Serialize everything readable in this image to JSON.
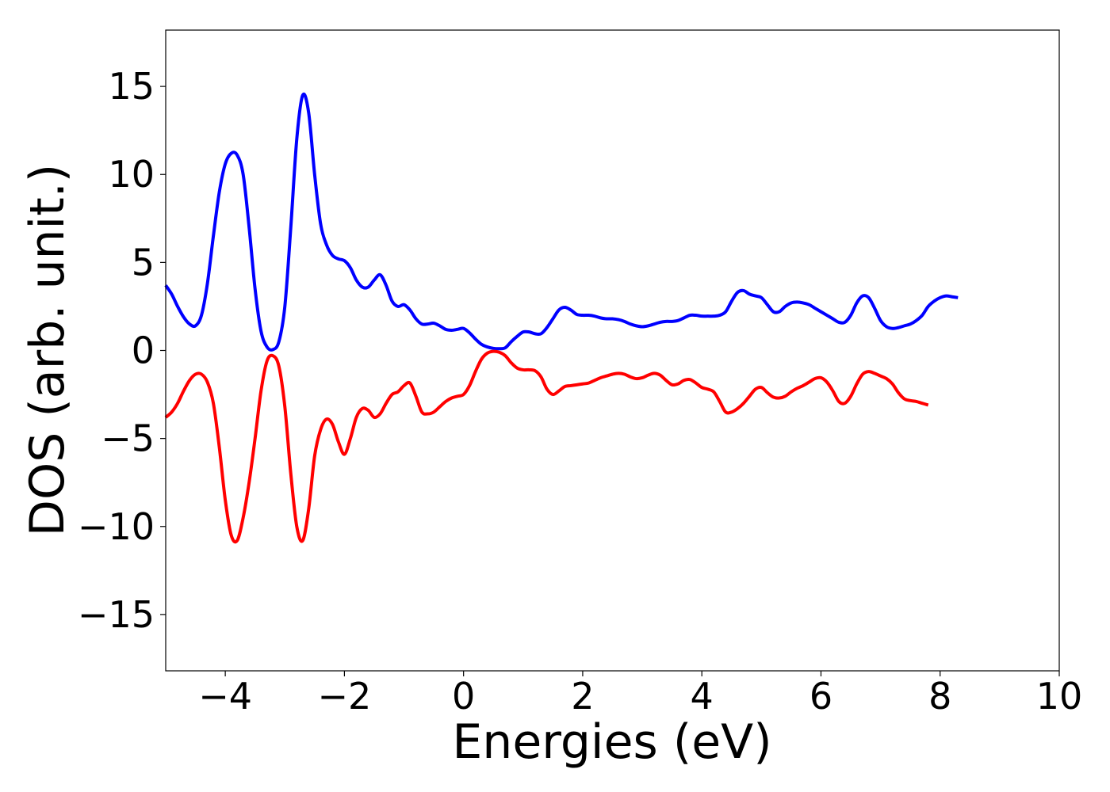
{
  "chart_data": {
    "type": "line",
    "title": "",
    "xlabel": "Energies (eV)",
    "ylabel": "DOS (arb. unit.)",
    "xlim": [
      -5,
      10
    ],
    "ylim": [
      -18.2,
      18.2
    ],
    "grid": false,
    "legend": "none",
    "x_ticks": [
      {
        "value": -4,
        "label": "−4"
      },
      {
        "value": -2,
        "label": "−2"
      },
      {
        "value": 0,
        "label": "0"
      },
      {
        "value": 2,
        "label": "2"
      },
      {
        "value": 4,
        "label": "4"
      },
      {
        "value": 6,
        "label": "6"
      },
      {
        "value": 8,
        "label": "8"
      },
      {
        "value": 10,
        "label": "10"
      }
    ],
    "y_ticks": [
      {
        "value": 15,
        "label": "15"
      },
      {
        "value": 10,
        "label": "10"
      },
      {
        "value": 5,
        "label": "5"
      },
      {
        "value": 0,
        "label": "0"
      },
      {
        "value": -5,
        "label": "−5"
      },
      {
        "value": -10,
        "label": "−10"
      },
      {
        "value": -15,
        "label": "−15"
      }
    ],
    "series": [
      {
        "color": "#0000ff",
        "points": [
          [
            -5.0,
            3.7
          ],
          [
            -4.9,
            3.2
          ],
          [
            -4.8,
            2.5
          ],
          [
            -4.7,
            1.9
          ],
          [
            -4.6,
            1.5
          ],
          [
            -4.5,
            1.4
          ],
          [
            -4.4,
            2.0
          ],
          [
            -4.3,
            3.8
          ],
          [
            -4.2,
            6.5
          ],
          [
            -4.1,
            9.0
          ],
          [
            -4.0,
            10.6
          ],
          [
            -3.9,
            11.2
          ],
          [
            -3.8,
            11.1
          ],
          [
            -3.7,
            10.0
          ],
          [
            -3.6,
            7.0
          ],
          [
            -3.5,
            3.5
          ],
          [
            -3.4,
            1.1
          ],
          [
            -3.3,
            0.2
          ],
          [
            -3.2,
            0.05
          ],
          [
            -3.1,
            0.5
          ],
          [
            -3.0,
            2.5
          ],
          [
            -2.9,
            7.0
          ],
          [
            -2.8,
            12.0
          ],
          [
            -2.7,
            14.5
          ],
          [
            -2.6,
            13.5
          ],
          [
            -2.5,
            10.0
          ],
          [
            -2.4,
            7.2
          ],
          [
            -2.3,
            6.0
          ],
          [
            -2.2,
            5.4
          ],
          [
            -2.1,
            5.2
          ],
          [
            -2.0,
            5.1
          ],
          [
            -1.9,
            4.7
          ],
          [
            -1.8,
            4.0
          ],
          [
            -1.7,
            3.6
          ],
          [
            -1.6,
            3.6
          ],
          [
            -1.5,
            4.0
          ],
          [
            -1.4,
            4.3
          ],
          [
            -1.3,
            3.7
          ],
          [
            -1.2,
            2.8
          ],
          [
            -1.1,
            2.5
          ],
          [
            -1.0,
            2.6
          ],
          [
            -0.9,
            2.3
          ],
          [
            -0.8,
            1.8
          ],
          [
            -0.7,
            1.5
          ],
          [
            -0.6,
            1.5
          ],
          [
            -0.5,
            1.55
          ],
          [
            -0.4,
            1.4
          ],
          [
            -0.3,
            1.2
          ],
          [
            -0.2,
            1.15
          ],
          [
            -0.1,
            1.2
          ],
          [
            0.0,
            1.25
          ],
          [
            0.1,
            1.0
          ],
          [
            0.2,
            0.65
          ],
          [
            0.3,
            0.35
          ],
          [
            0.4,
            0.2
          ],
          [
            0.5,
            0.12
          ],
          [
            0.6,
            0.1
          ],
          [
            0.7,
            0.15
          ],
          [
            0.8,
            0.5
          ],
          [
            0.9,
            0.8
          ],
          [
            1.0,
            1.05
          ],
          [
            1.1,
            1.05
          ],
          [
            1.2,
            0.95
          ],
          [
            1.3,
            0.95
          ],
          [
            1.4,
            1.3
          ],
          [
            1.5,
            1.8
          ],
          [
            1.6,
            2.3
          ],
          [
            1.7,
            2.45
          ],
          [
            1.8,
            2.3
          ],
          [
            1.9,
            2.05
          ],
          [
            2.0,
            2.0
          ],
          [
            2.1,
            2.0
          ],
          [
            2.2,
            1.95
          ],
          [
            2.3,
            1.85
          ],
          [
            2.4,
            1.8
          ],
          [
            2.5,
            1.8
          ],
          [
            2.6,
            1.75
          ],
          [
            2.7,
            1.65
          ],
          [
            2.8,
            1.5
          ],
          [
            2.9,
            1.4
          ],
          [
            3.0,
            1.35
          ],
          [
            3.1,
            1.4
          ],
          [
            3.2,
            1.5
          ],
          [
            3.3,
            1.6
          ],
          [
            3.4,
            1.65
          ],
          [
            3.5,
            1.65
          ],
          [
            3.6,
            1.7
          ],
          [
            3.7,
            1.85
          ],
          [
            3.8,
            2.0
          ],
          [
            3.9,
            2.0
          ],
          [
            4.0,
            1.95
          ],
          [
            4.1,
            1.95
          ],
          [
            4.2,
            1.95
          ],
          [
            4.3,
            2.0
          ],
          [
            4.4,
            2.2
          ],
          [
            4.5,
            2.8
          ],
          [
            4.6,
            3.3
          ],
          [
            4.7,
            3.4
          ],
          [
            4.8,
            3.2
          ],
          [
            4.9,
            3.1
          ],
          [
            5.0,
            3.0
          ],
          [
            5.1,
            2.6
          ],
          [
            5.2,
            2.2
          ],
          [
            5.3,
            2.2
          ],
          [
            5.4,
            2.5
          ],
          [
            5.5,
            2.7
          ],
          [
            5.6,
            2.75
          ],
          [
            5.7,
            2.7
          ],
          [
            5.8,
            2.6
          ],
          [
            5.9,
            2.4
          ],
          [
            6.0,
            2.2
          ],
          [
            6.1,
            2.0
          ],
          [
            6.2,
            1.8
          ],
          [
            6.3,
            1.6
          ],
          [
            6.4,
            1.6
          ],
          [
            6.5,
            2.0
          ],
          [
            6.6,
            2.7
          ],
          [
            6.7,
            3.1
          ],
          [
            6.8,
            3.0
          ],
          [
            6.9,
            2.4
          ],
          [
            7.0,
            1.7
          ],
          [
            7.1,
            1.35
          ],
          [
            7.2,
            1.25
          ],
          [
            7.3,
            1.3
          ],
          [
            7.4,
            1.4
          ],
          [
            7.5,
            1.5
          ],
          [
            7.6,
            1.7
          ],
          [
            7.7,
            2.0
          ],
          [
            7.8,
            2.5
          ],
          [
            7.9,
            2.8
          ],
          [
            8.0,
            3.0
          ],
          [
            8.1,
            3.1
          ],
          [
            8.2,
            3.05
          ],
          [
            8.3,
            3.0
          ]
        ],
        "x_scale_note": "",
        "x_values_in_plot_units": true
      },
      {
        "color": "#ff0000",
        "points": [
          [
            -5.0,
            -3.8
          ],
          [
            -4.9,
            -3.5
          ],
          [
            -4.8,
            -3.0
          ],
          [
            -4.7,
            -2.3
          ],
          [
            -4.6,
            -1.7
          ],
          [
            -4.5,
            -1.35
          ],
          [
            -4.4,
            -1.35
          ],
          [
            -4.3,
            -1.8
          ],
          [
            -4.2,
            -3.0
          ],
          [
            -4.1,
            -5.5
          ],
          [
            -4.0,
            -8.5
          ],
          [
            -3.9,
            -10.5
          ],
          [
            -3.8,
            -10.8
          ],
          [
            -3.7,
            -9.5
          ],
          [
            -3.6,
            -7.5
          ],
          [
            -3.5,
            -5.0
          ],
          [
            -3.4,
            -2.3
          ],
          [
            -3.3,
            -0.6
          ],
          [
            -3.2,
            -0.3
          ],
          [
            -3.1,
            -0.9
          ],
          [
            -3.0,
            -3.2
          ],
          [
            -2.9,
            -7.0
          ],
          [
            -2.8,
            -10.0
          ],
          [
            -2.7,
            -10.8
          ],
          [
            -2.6,
            -9.0
          ],
          [
            -2.5,
            -6.0
          ],
          [
            -2.4,
            -4.5
          ],
          [
            -2.3,
            -3.9
          ],
          [
            -2.2,
            -4.2
          ],
          [
            -2.1,
            -5.2
          ],
          [
            -2.0,
            -5.9
          ],
          [
            -1.9,
            -5.0
          ],
          [
            -1.8,
            -3.8
          ],
          [
            -1.7,
            -3.3
          ],
          [
            -1.6,
            -3.4
          ],
          [
            -1.5,
            -3.8
          ],
          [
            -1.4,
            -3.6
          ],
          [
            -1.3,
            -3.0
          ],
          [
            -1.2,
            -2.5
          ],
          [
            -1.1,
            -2.35
          ],
          [
            -1.0,
            -2.0
          ],
          [
            -0.9,
            -1.85
          ],
          [
            -0.8,
            -2.6
          ],
          [
            -0.7,
            -3.5
          ],
          [
            -0.6,
            -3.6
          ],
          [
            -0.5,
            -3.5
          ],
          [
            -0.4,
            -3.2
          ],
          [
            -0.3,
            -2.9
          ],
          [
            -0.2,
            -2.7
          ],
          [
            -0.1,
            -2.6
          ],
          [
            0.0,
            -2.5
          ],
          [
            0.1,
            -2.0
          ],
          [
            0.2,
            -1.2
          ],
          [
            0.3,
            -0.5
          ],
          [
            0.4,
            -0.15
          ],
          [
            0.5,
            -0.05
          ],
          [
            0.6,
            -0.1
          ],
          [
            0.7,
            -0.3
          ],
          [
            0.8,
            -0.7
          ],
          [
            0.9,
            -1.0
          ],
          [
            1.0,
            -1.1
          ],
          [
            1.1,
            -1.1
          ],
          [
            1.2,
            -1.15
          ],
          [
            1.3,
            -1.5
          ],
          [
            1.4,
            -2.2
          ],
          [
            1.5,
            -2.5
          ],
          [
            1.6,
            -2.3
          ],
          [
            1.7,
            -2.05
          ],
          [
            1.8,
            -2.0
          ],
          [
            1.9,
            -1.95
          ],
          [
            2.0,
            -1.9
          ],
          [
            2.1,
            -1.85
          ],
          [
            2.2,
            -1.7
          ],
          [
            2.3,
            -1.55
          ],
          [
            2.4,
            -1.45
          ],
          [
            2.5,
            -1.35
          ],
          [
            2.6,
            -1.3
          ],
          [
            2.7,
            -1.35
          ],
          [
            2.8,
            -1.5
          ],
          [
            2.9,
            -1.6
          ],
          [
            3.0,
            -1.55
          ],
          [
            3.1,
            -1.4
          ],
          [
            3.2,
            -1.3
          ],
          [
            3.3,
            -1.4
          ],
          [
            3.4,
            -1.7
          ],
          [
            3.5,
            -1.95
          ],
          [
            3.6,
            -1.9
          ],
          [
            3.7,
            -1.7
          ],
          [
            3.8,
            -1.65
          ],
          [
            3.9,
            -1.85
          ],
          [
            4.0,
            -2.1
          ],
          [
            4.1,
            -2.2
          ],
          [
            4.2,
            -2.35
          ],
          [
            4.3,
            -2.9
          ],
          [
            4.4,
            -3.5
          ],
          [
            4.5,
            -3.5
          ],
          [
            4.6,
            -3.3
          ],
          [
            4.7,
            -3.0
          ],
          [
            4.8,
            -2.6
          ],
          [
            4.9,
            -2.2
          ],
          [
            5.0,
            -2.1
          ],
          [
            5.1,
            -2.4
          ],
          [
            5.2,
            -2.65
          ],
          [
            5.3,
            -2.7
          ],
          [
            5.4,
            -2.6
          ],
          [
            5.5,
            -2.35
          ],
          [
            5.6,
            -2.15
          ],
          [
            5.7,
            -2.0
          ],
          [
            5.8,
            -1.8
          ],
          [
            5.9,
            -1.6
          ],
          [
            6.0,
            -1.55
          ],
          [
            6.1,
            -1.8
          ],
          [
            6.2,
            -2.3
          ],
          [
            6.3,
            -2.9
          ],
          [
            6.4,
            -3.0
          ],
          [
            6.5,
            -2.6
          ],
          [
            6.6,
            -1.9
          ],
          [
            6.7,
            -1.35
          ],
          [
            6.8,
            -1.2
          ],
          [
            6.9,
            -1.3
          ],
          [
            7.0,
            -1.45
          ],
          [
            7.1,
            -1.6
          ],
          [
            7.2,
            -1.9
          ],
          [
            7.3,
            -2.4
          ],
          [
            7.4,
            -2.75
          ],
          [
            7.5,
            -2.85
          ],
          [
            7.6,
            -2.9
          ],
          [
            7.7,
            -3.0
          ],
          [
            7.8,
            -3.1
          ]
        ],
        "x_values_in_plot_units": true
      }
    ]
  }
}
